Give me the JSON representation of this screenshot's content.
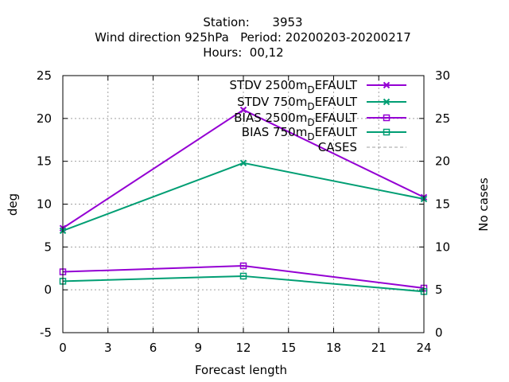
{
  "chart_data": {
    "type": "line",
    "title_lines": [
      "Station:      3953",
      "Wind direction 925hPa   Period: 20200203-20200217",
      "Hours:  00,12"
    ],
    "xlabel": "Forecast length",
    "ylabel": "deg",
    "y2label": "No cases",
    "xlim": [
      0,
      24
    ],
    "ylim": [
      -5,
      25
    ],
    "y2lim": [
      0,
      30
    ],
    "xticks": [
      "0",
      "3",
      "6",
      "9",
      "12",
      "15",
      "18",
      "21",
      "24"
    ],
    "yticks": [
      "-5",
      "0",
      "5",
      "10",
      "15",
      "20",
      "25"
    ],
    "y2ticks": [
      "0",
      "5",
      "10",
      "15",
      "20",
      "25",
      "30"
    ],
    "grid": true,
    "legend_position": "top-right",
    "series": [
      {
        "name_prefix": "STDV 2500m",
        "name_sub": "D",
        "name_suffix": "EFAULT",
        "color": "#9400d3",
        "marker": "x",
        "x": [
          0,
          12,
          24
        ],
        "values": [
          7.2,
          21.0,
          10.8
        ],
        "axis": "y"
      },
      {
        "name_prefix": "STDV 750m",
        "name_sub": "D",
        "name_suffix": "EFAULT",
        "color": "#009e73",
        "marker": "x",
        "x": [
          0,
          12,
          24
        ],
        "values": [
          6.9,
          14.8,
          10.6
        ],
        "axis": "y"
      },
      {
        "name_prefix": "BIAS 2500m",
        "name_sub": "D",
        "name_suffix": "EFAULT",
        "color": "#9400d3",
        "marker": "square",
        "x": [
          0,
          12,
          24
        ],
        "values": [
          2.1,
          2.8,
          0.2
        ],
        "axis": "y"
      },
      {
        "name_prefix": "BIAS 750m",
        "name_sub": "D",
        "name_suffix": "EFAULT",
        "color": "#009e73",
        "marker": "square",
        "x": [
          0,
          12,
          24
        ],
        "values": [
          1.0,
          1.6,
          -0.2
        ],
        "axis": "y"
      },
      {
        "name_prefix": "CASES",
        "name_sub": "",
        "name_suffix": "",
        "color": "#a0a0a0",
        "marker": "none",
        "dashed": true,
        "x": [
          0,
          12,
          24
        ],
        "values": [
          30,
          30,
          30
        ],
        "axis": "y2"
      }
    ]
  }
}
